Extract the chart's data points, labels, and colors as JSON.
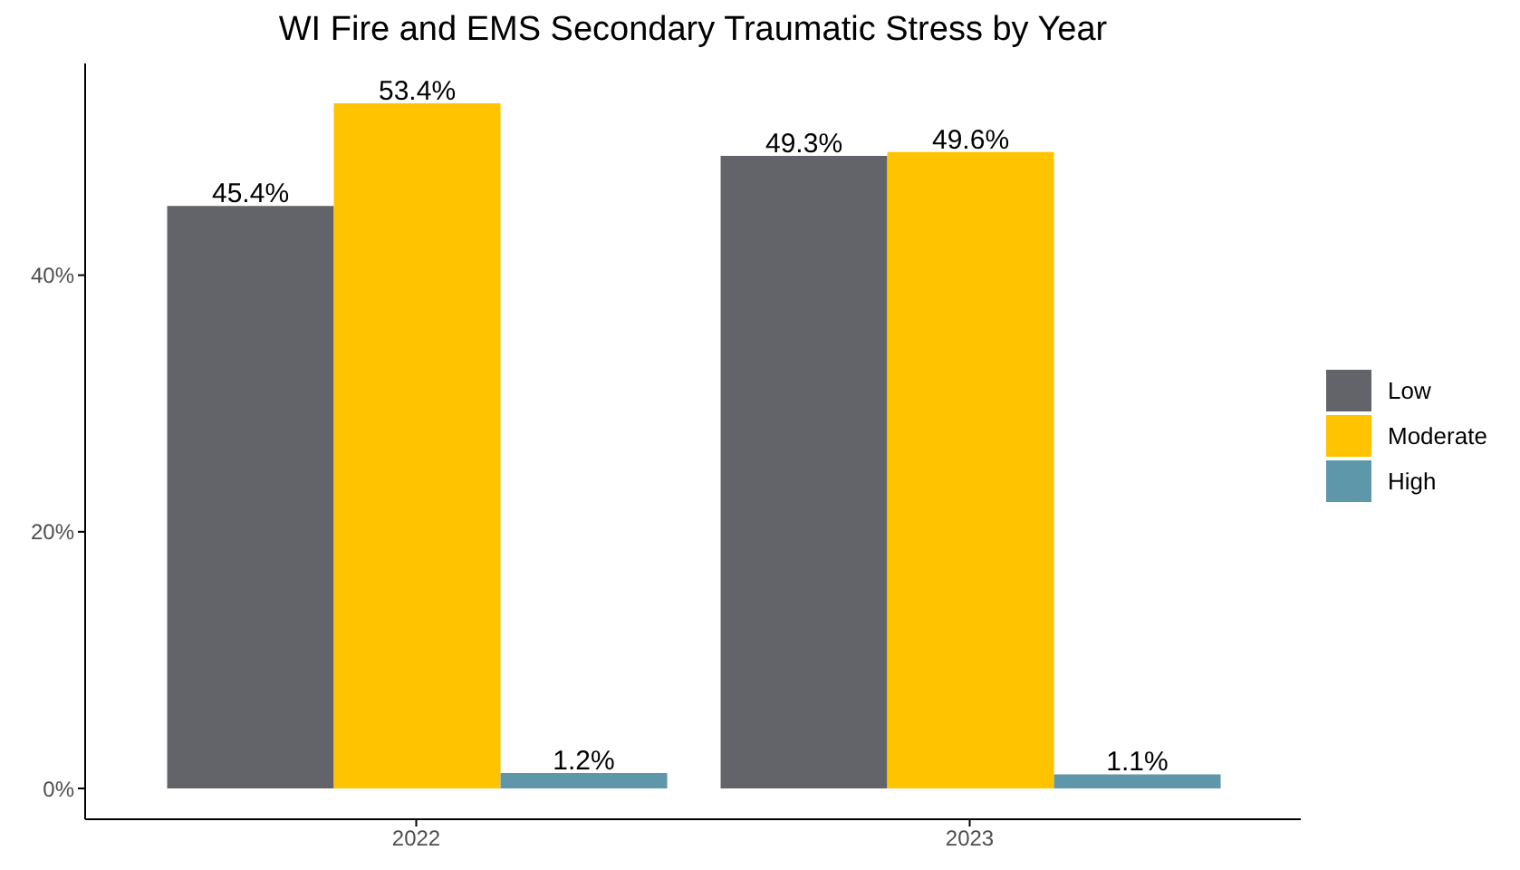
{
  "chart_data": {
    "type": "bar",
    "title": "WI Fire and EMS Secondary Traumatic Stress by Year",
    "categories": [
      "2022",
      "2023"
    ],
    "series": [
      {
        "name": "Low",
        "color": "#636469",
        "values": [
          45.4,
          49.3
        ],
        "value_labels": [
          "45.4%",
          "49.3%"
        ]
      },
      {
        "name": "Moderate",
        "color": "#ffc300",
        "values": [
          53.4,
          49.6
        ],
        "value_labels": [
          "53.4%",
          "49.6%"
        ]
      },
      {
        "name": "High",
        "color": "#5f97aa",
        "values": [
          1.2,
          1.1
        ],
        "value_labels": [
          "1.2%",
          "1.1%"
        ]
      }
    ],
    "ylim": [
      -2.4,
      56.5
    ],
    "yticks": [
      {
        "value": 0,
        "label": "0%"
      },
      {
        "value": 20,
        "label": "20%"
      },
      {
        "value": 40,
        "label": "40%"
      }
    ],
    "grid": false,
    "legend": "right"
  }
}
